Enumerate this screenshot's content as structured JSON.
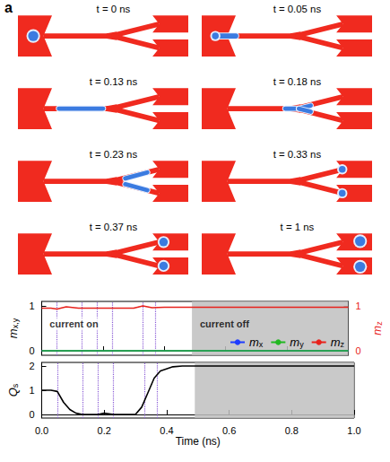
{
  "panel_label": "a",
  "snapshots": [
    {
      "label": "t = 0 ns"
    },
    {
      "label": "t = 0.05 ns"
    },
    {
      "label": "t = 0.13 ns"
    },
    {
      "label": "t = 0.18 ns"
    },
    {
      "label": "t = 0.23 ns"
    },
    {
      "label": "t = 0.33 ns"
    },
    {
      "label": "t = 0.37 ns"
    },
    {
      "label": "t = 1 ns"
    }
  ],
  "chart_data": [
    {
      "type": "line",
      "ylabel": "mx,y",
      "y2label": "mz",
      "xlim": [
        0,
        1
      ],
      "xticks": [
        0,
        0.2,
        0.4,
        0.6,
        0.8,
        1
      ],
      "ylim": [
        -0.1,
        1.1
      ],
      "yticks": [
        0,
        1
      ],
      "y2lim": [
        -0.1,
        1.1
      ],
      "y2ticks": [
        0,
        1
      ],
      "tick_labels": "y",
      "grid": false,
      "legend": "lower right",
      "x": [
        0,
        0.03,
        0.05,
        0.08,
        0.12,
        0.2,
        0.3,
        0.33,
        0.36,
        0.4,
        0.5,
        1.0
      ],
      "series": [
        {
          "name": "mx",
          "color": "#1f3cff",
          "values": [
            0,
            0,
            0,
            0,
            0,
            0,
            0,
            0,
            0,
            0,
            0,
            0
          ]
        },
        {
          "name": "my",
          "color": "#22b822",
          "values": [
            0,
            0,
            0,
            0,
            0,
            0,
            0,
            0,
            0,
            0,
            0,
            0
          ]
        },
        {
          "name": "mz",
          "color": "#e8221c",
          "axis": "y2",
          "values": [
            0.95,
            0.95,
            0.93,
            0.98,
            0.95,
            0.95,
            0.95,
            1.0,
            0.96,
            0.97,
            0.97,
            0.97
          ]
        }
      ],
      "vlines": [
        0.05,
        0.13,
        0.18,
        0.23,
        0.33,
        0.37
      ],
      "vline_color": "#8a5cd6",
      "shaded": {
        "from": 0.49,
        "to": 1.0,
        "color": "#c0c0c0"
      },
      "annotations": [
        {
          "text": "current on",
          "x": 0.02,
          "y": 0.6
        },
        {
          "text": "current off",
          "x": 0.51,
          "y": 0.6
        }
      ]
    },
    {
      "type": "line",
      "xlabel": "Time (ns)",
      "ylabel": "Qs",
      "xlim": [
        0,
        1
      ],
      "xticks": [
        {
          "value": 0,
          "label": "0.0"
        },
        {
          "value": 0.2,
          "label": "0.2"
        },
        {
          "value": 0.4,
          "label": "0.4"
        },
        {
          "value": 0.6,
          "label": "0.6"
        },
        {
          "value": 0.8,
          "label": "0.8"
        },
        {
          "value": 1,
          "label": "1.0"
        }
      ],
      "ylim": [
        -0.15,
        2.15
      ],
      "yticks": [
        0,
        1,
        2
      ],
      "grid": false,
      "x": [
        0,
        0.03,
        0.05,
        0.07,
        0.09,
        0.11,
        0.13,
        0.18,
        0.2,
        0.23,
        0.3,
        0.32,
        0.34,
        0.36,
        0.38,
        0.42,
        0.45,
        1.0
      ],
      "series": [
        {
          "color": "#000000",
          "values": [
            1,
            1,
            0.95,
            0.5,
            0.2,
            0.05,
            0,
            0,
            0.05,
            0,
            0,
            0.3,
            0.9,
            1.5,
            1.8,
            1.97,
            2,
            2
          ]
        }
      ],
      "vlines": [
        0.05,
        0.13,
        0.18,
        0.23,
        0.33,
        0.37
      ],
      "vline_color": "#8a5cd6",
      "shaded": {
        "from": 0.49,
        "to": 1.0,
        "color": "#c0c0c0"
      }
    }
  ]
}
